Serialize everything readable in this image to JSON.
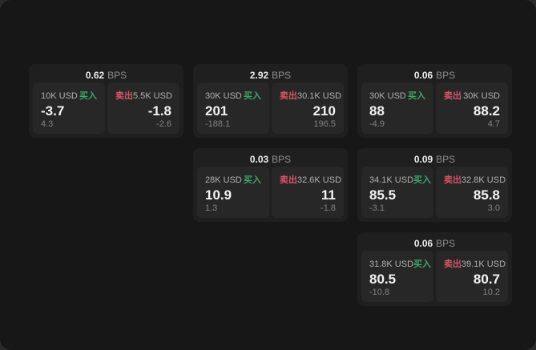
{
  "labels": {
    "bps": "BPS",
    "buy": "买入",
    "sell": "卖出"
  },
  "colors": {
    "buy": "#3fa56a",
    "sell": "#d9536a",
    "window_bg": "#171717",
    "card_bg": "#1f1f1f",
    "panel_bg": "#272727"
  },
  "cards": [
    {
      "row": 1,
      "col": 1,
      "bps": "0.62",
      "buy": {
        "amount": "10K USD",
        "value": "-3.7",
        "delta": "4.3"
      },
      "sell": {
        "amount": "5.5K USD",
        "value": "-1.8",
        "delta": "-2.6"
      }
    },
    {
      "row": 1,
      "col": 2,
      "bps": "2.92",
      "buy": {
        "amount": "30K USD",
        "value": "201",
        "delta": "-188.1"
      },
      "sell": {
        "amount": "30.1K USD",
        "value": "210",
        "delta": "196.5"
      }
    },
    {
      "row": 1,
      "col": 3,
      "bps": "0.06",
      "buy": {
        "amount": "30K USD",
        "value": "88",
        "delta": "-4.9"
      },
      "sell": {
        "amount": "30K USD",
        "value": "88.2",
        "delta": "4.7"
      }
    },
    {
      "row": 2,
      "col": 2,
      "bps": "0.03",
      "buy": {
        "amount": "28K USD",
        "value": "10.9",
        "delta": "1.3"
      },
      "sell": {
        "amount": "32.6K USD",
        "value": "11",
        "delta": "-1.8"
      }
    },
    {
      "row": 2,
      "col": 3,
      "bps": "0.09",
      "buy": {
        "amount": "34.1K USD",
        "value": "85.5",
        "delta": "-3.1"
      },
      "sell": {
        "amount": "32.8K USD",
        "value": "85.8",
        "delta": "3.0"
      }
    },
    {
      "row": 3,
      "col": 3,
      "bps": "0.06",
      "buy": {
        "amount": "31.8K USD",
        "value": "80.5",
        "delta": "-10.8"
      },
      "sell": {
        "amount": "39.1K USD",
        "value": "80.7",
        "delta": "10.2"
      }
    }
  ]
}
